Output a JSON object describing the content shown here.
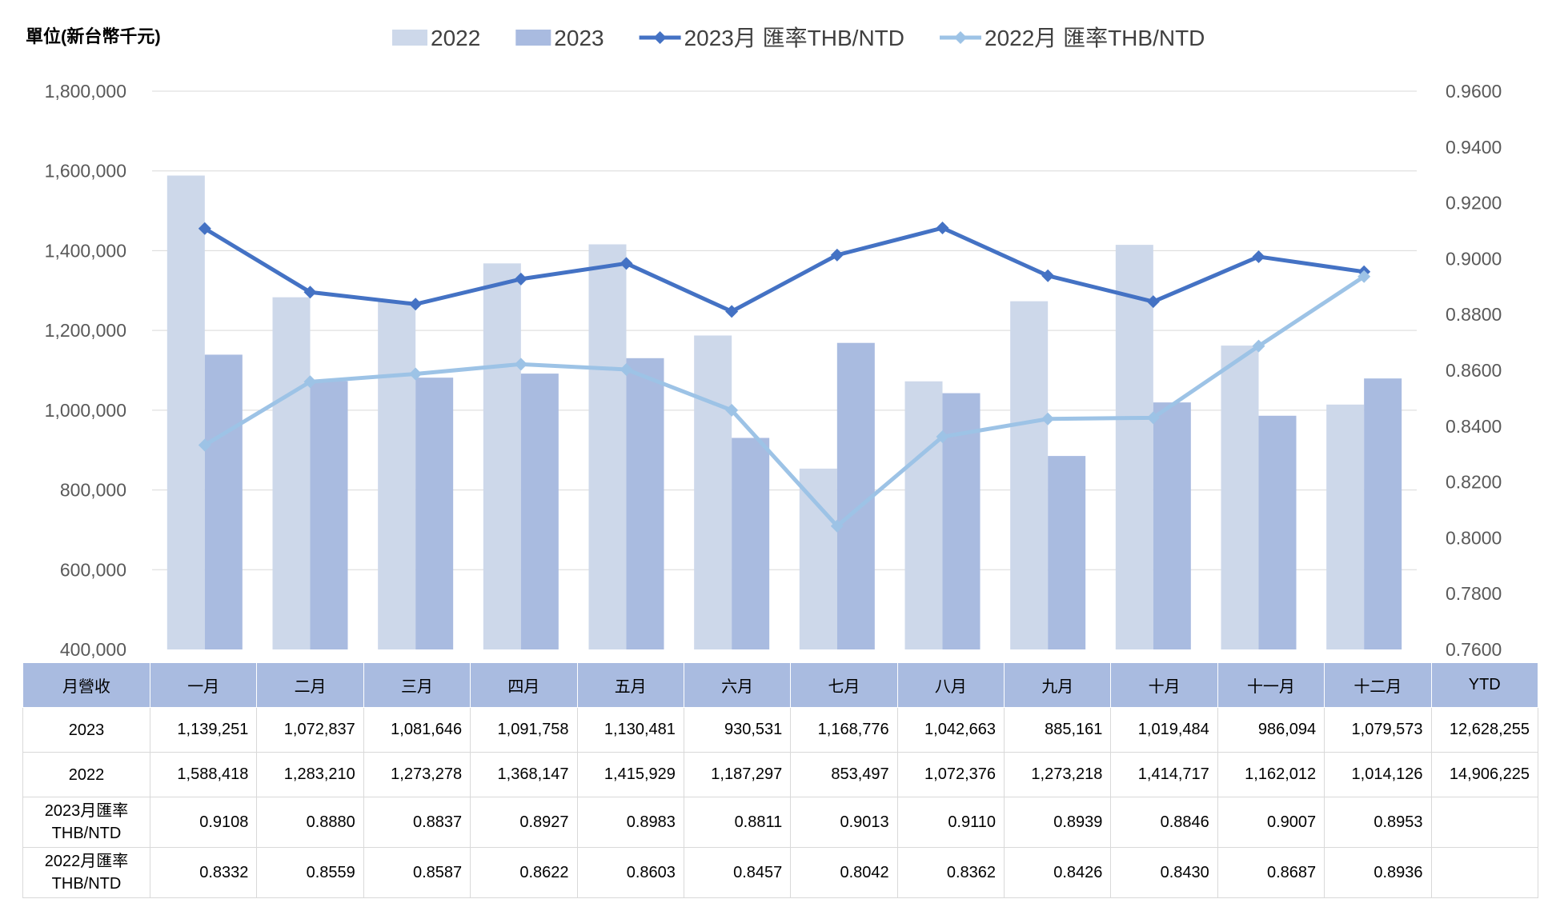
{
  "unit_label": "單位(新台幣千元)",
  "chart_data": {
    "type": "bar",
    "categories": [
      "一月",
      "二月",
      "三月",
      "四月",
      "五月",
      "六月",
      "七月",
      "八月",
      "九月",
      "十月",
      "十一月",
      "十二月"
    ],
    "series": [
      {
        "name": "2022",
        "kind": "bar",
        "axis": "left",
        "color": "#cdd8ea",
        "values": [
          1588418,
          1283210,
          1273278,
          1368147,
          1415929,
          1187297,
          853497,
          1072376,
          1273218,
          1414717,
          1162012,
          1014126
        ]
      },
      {
        "name": "2023",
        "kind": "bar",
        "axis": "left",
        "color": "#a9bbe0",
        "values": [
          1139251,
          1072837,
          1081646,
          1091758,
          1130481,
          930531,
          1168776,
          1042663,
          885161,
          1019484,
          986094,
          1079573
        ]
      },
      {
        "name": "2023月 匯率THB/NTD",
        "kind": "line",
        "axis": "right",
        "color": "#4472c4",
        "values": [
          0.9108,
          0.888,
          0.8837,
          0.8927,
          0.8983,
          0.8811,
          0.9013,
          0.911,
          0.8939,
          0.8846,
          0.9007,
          0.8953
        ]
      },
      {
        "name": "2022月 匯率THB/NTD",
        "kind": "line",
        "axis": "right",
        "color": "#9dc3e6",
        "values": [
          0.8332,
          0.8559,
          0.8587,
          0.8622,
          0.8603,
          0.8457,
          0.8042,
          0.8362,
          0.8426,
          0.843,
          0.8687,
          0.8936
        ]
      }
    ],
    "ylim_left": [
      400000,
      1800000
    ],
    "ylim_right": [
      0.76,
      0.96
    ],
    "left_ticks": [
      "1,800,000",
      "1,600,000",
      "1,400,000",
      "1,200,000",
      "1,000,000",
      "800,000",
      "600,000",
      "400,000"
    ],
    "right_ticks": [
      "0.9600",
      "0.9400",
      "0.9200",
      "0.9000",
      "0.8800",
      "0.8600",
      "0.8400",
      "0.8200",
      "0.8000",
      "0.7800",
      "0.7600"
    ],
    "grid": true,
    "legend_position": "top"
  },
  "table": {
    "header": [
      "月營收",
      "一月",
      "二月",
      "三月",
      "四月",
      "五月",
      "六月",
      "七月",
      "八月",
      "九月",
      "十月",
      "十一月",
      "十二月",
      "YTD"
    ],
    "rows": [
      {
        "label": [
          "2023"
        ],
        "cells": [
          "1,139,251",
          "1,072,837",
          "1,081,646",
          "1,091,758",
          "1,130,481",
          "930,531",
          "1,168,776",
          "1,042,663",
          "885,161",
          "1,019,484",
          "986,094",
          "1,079,573",
          "12,628,255"
        ]
      },
      {
        "label": [
          "2022"
        ],
        "cells": [
          "1,588,418",
          "1,283,210",
          "1,273,278",
          "1,368,147",
          "1,415,929",
          "1,187,297",
          "853,497",
          "1,072,376",
          "1,273,218",
          "1,414,717",
          "1,162,012",
          "1,014,126",
          "14,906,225"
        ]
      },
      {
        "label": [
          "2023月匯率",
          "THB/NTD"
        ],
        "cells": [
          "0.9108",
          "0.8880",
          "0.8837",
          "0.8927",
          "0.8983",
          "0.8811",
          "0.9013",
          "0.9110",
          "0.8939",
          "0.8846",
          "0.9007",
          "0.8953",
          ""
        ]
      },
      {
        "label": [
          "2022月匯率",
          "THB/NTD"
        ],
        "cells": [
          "0.8332",
          "0.8559",
          "0.8587",
          "0.8622",
          "0.8603",
          "0.8457",
          "0.8042",
          "0.8362",
          "0.8426",
          "0.8430",
          "0.8687",
          "0.8936",
          ""
        ]
      }
    ]
  }
}
